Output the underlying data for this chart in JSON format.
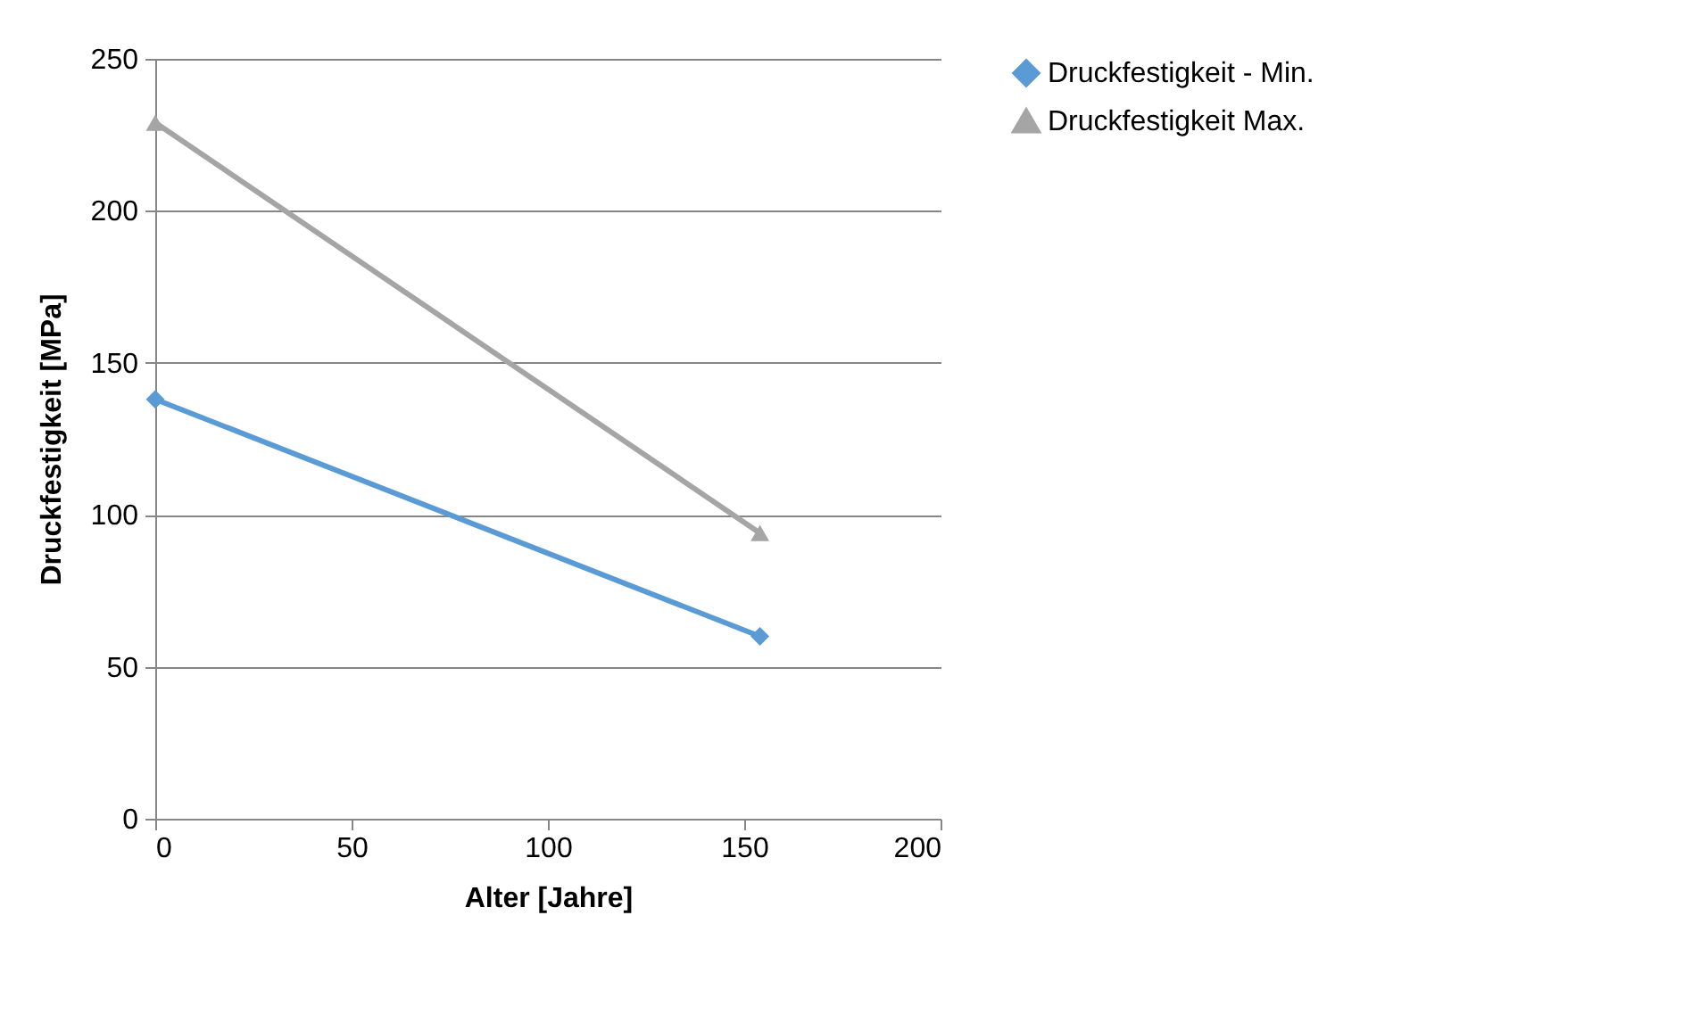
{
  "chart_data": {
    "type": "line",
    "xlabel": "Alter [Jahre]",
    "ylabel": "Druckfestigkeit [MPa]",
    "x": [
      0,
      154
    ],
    "series": [
      {
        "name": "Druckfestigkeit - Min.",
        "color": "#5b9bd5",
        "marker": "diamond",
        "values": [
          138,
          60
        ]
      },
      {
        "name": "Druckfestigkeit Max.",
        "color": "#a5a5a5",
        "marker": "triangle",
        "values": [
          229,
          94
        ]
      }
    ],
    "xlim": [
      0,
      200
    ],
    "xticks": [
      0,
      50,
      100,
      150,
      200
    ],
    "ylim": [
      0,
      250
    ],
    "yticks": [
      0,
      50,
      100,
      150,
      200,
      250
    ],
    "grid": "y",
    "legend": "right"
  }
}
